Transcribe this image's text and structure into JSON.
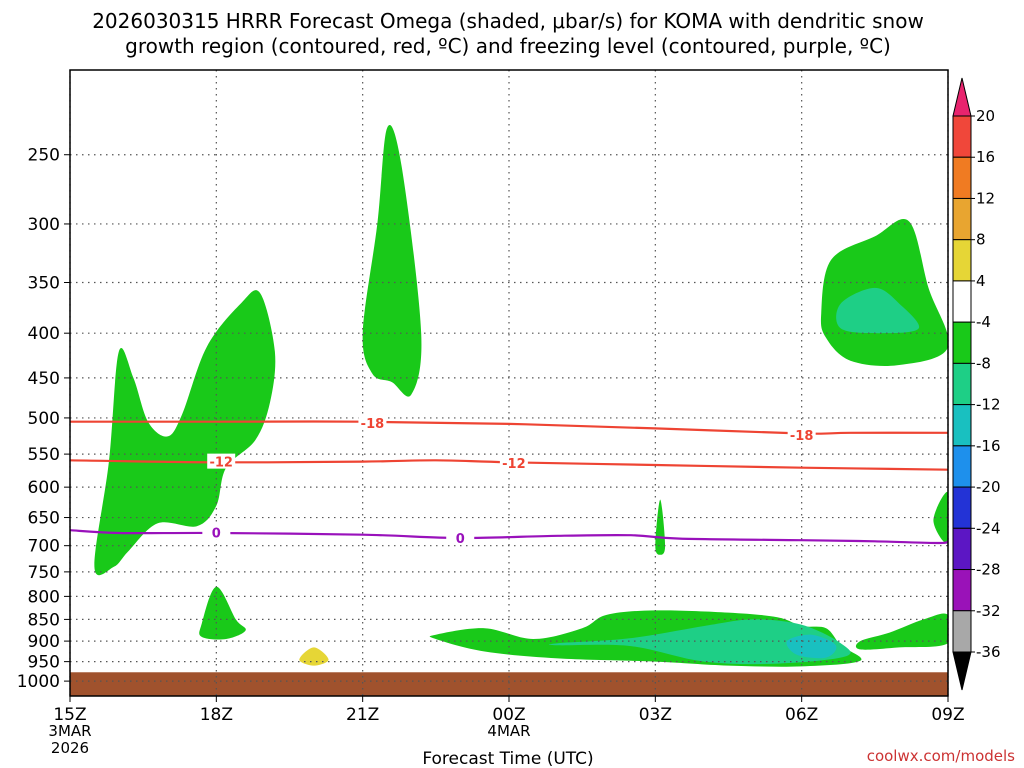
{
  "chart_data": {
    "type": "contour",
    "title_line1": "2026030315 HRRR Forecast Omega (shaded, μbar/s) for KOMA with dendritic snow",
    "title_line2": "growth region (contoured, red, ºC) and freezing level (contoured, purple, ºC)",
    "xlabel": "Forecast Time (UTC)",
    "credit": "coolwx.com/models",
    "x_ticks": [
      {
        "hour": 0,
        "label": "15Z",
        "sub1": "3MAR",
        "sub2": "2026"
      },
      {
        "hour": 3,
        "label": "18Z",
        "sub1": "",
        "sub2": ""
      },
      {
        "hour": 6,
        "label": "21Z",
        "sub1": "",
        "sub2": ""
      },
      {
        "hour": 9,
        "label": "00Z",
        "sub1": "4MAR",
        "sub2": ""
      },
      {
        "hour": 12,
        "label": "03Z",
        "sub1": "",
        "sub2": ""
      },
      {
        "hour": 15,
        "label": "06Z",
        "sub1": "",
        "sub2": ""
      },
      {
        "hour": 18,
        "label": "09Z",
        "sub1": "",
        "sub2": ""
      }
    ],
    "y_ticks": [
      250,
      300,
      350,
      400,
      450,
      500,
      550,
      600,
      650,
      700,
      750,
      800,
      850,
      900,
      950,
      1000
    ],
    "xlim": [
      0,
      18
    ],
    "ylim": [
      200,
      1040
    ],
    "y_scale": "log-pressure",
    "grid": true,
    "colorbar": {
      "labels": [
        "20",
        "16",
        "12",
        "8",
        "4",
        "-4",
        "-8",
        "-12",
        "-16",
        "-20",
        "-24",
        "-28",
        "-32",
        "-36"
      ],
      "colors": [
        "#e8246e",
        "#f0473a",
        "#f07b22",
        "#e8a530",
        "#e6d636",
        "#ffffff",
        "#19c919",
        "#1ecf86",
        "#19c0c0",
        "#1e90ec",
        "#2333d6",
        "#5c16c4",
        "#9a12b8",
        "#a8a8a8",
        "#000000"
      ]
    },
    "isotherms": [
      {
        "label": "-18",
        "color": "#ee4433",
        "points": [
          [
            0,
            505
          ],
          [
            3,
            505
          ],
          [
            6,
            505
          ],
          [
            9,
            508
          ],
          [
            12,
            514
          ],
          [
            15,
            521
          ],
          [
            16,
            520
          ],
          [
            18,
            520
          ]
        ],
        "label_at": [
          [
            6.2,
            507
          ],
          [
            15.0,
            523
          ]
        ]
      },
      {
        "label": "-12",
        "color": "#ee4433",
        "points": [
          [
            0,
            559
          ],
          [
            3,
            562
          ],
          [
            6,
            561
          ],
          [
            7.5,
            559
          ],
          [
            9,
            562
          ],
          [
            12,
            566
          ],
          [
            15,
            570
          ],
          [
            18,
            573
          ]
        ],
        "label_at": [
          [
            3.1,
            561
          ],
          [
            9.1,
            563
          ]
        ]
      },
      {
        "label": "0",
        "color": "#9911bb",
        "points": [
          [
            0,
            672
          ],
          [
            1,
            677
          ],
          [
            3,
            677
          ],
          [
            6,
            680
          ],
          [
            8,
            686
          ],
          [
            10,
            682
          ],
          [
            11.5,
            681
          ],
          [
            12.5,
            687
          ],
          [
            15,
            690
          ],
          [
            16.5,
            692
          ],
          [
            17.8,
            695
          ],
          [
            18,
            692
          ]
        ],
        "label_at": [
          [
            3.0,
            676
          ],
          [
            8.0,
            686
          ]
        ]
      }
    ],
    "ground": {
      "color": "#a0522d",
      "top_hpa": 977
    },
    "omega_regions": [
      {
        "value": "-4 to -8",
        "color": "#19c919",
        "points": [
          [
            0.5,
            740
          ],
          [
            0.8,
            560
          ],
          [
            1.0,
            420
          ],
          [
            1.3,
            450
          ],
          [
            1.6,
            505
          ],
          [
            2.0,
            525
          ],
          [
            2.3,
            495
          ],
          [
            2.8,
            415
          ],
          [
            3.5,
            370
          ],
          [
            3.9,
            360
          ],
          [
            4.2,
            420
          ],
          [
            4.1,
            480
          ],
          [
            3.8,
            530
          ],
          [
            3.2,
            570
          ],
          [
            3.0,
            630
          ],
          [
            2.6,
            665
          ],
          [
            1.8,
            660
          ],
          [
            1.2,
            710
          ],
          [
            0.9,
            740
          ]
        ]
      },
      {
        "value": "-4 to -8",
        "color": "#19c919",
        "points": [
          [
            6.0,
            400
          ],
          [
            6.3,
            300
          ],
          [
            6.5,
            233
          ],
          [
            6.8,
            258
          ],
          [
            7.2,
            400
          ],
          [
            7.0,
            470
          ],
          [
            6.6,
            455
          ],
          [
            6.2,
            445
          ]
        ]
      },
      {
        "value": "-4 to -8",
        "color": "#19c919",
        "points": [
          [
            15.4,
            380
          ],
          [
            15.6,
            330
          ],
          [
            16.5,
            310
          ],
          [
            17.2,
            298
          ],
          [
            17.6,
            355
          ],
          [
            18.0,
            415
          ],
          [
            17.0,
            435
          ],
          [
            16.0,
            430
          ],
          [
            15.5,
            405
          ]
        ]
      },
      {
        "value": "-8 to -12",
        "color": "#1ecf86",
        "points": [
          [
            15.8,
            370
          ],
          [
            16.5,
            355
          ],
          [
            17.0,
            370
          ],
          [
            17.4,
            395
          ],
          [
            16.6,
            400
          ],
          [
            15.8,
            395
          ]
        ]
      },
      {
        "value": "-4 to -8",
        "color": "#19c919",
        "points": [
          [
            17.7,
            655
          ],
          [
            18.0,
            608
          ],
          [
            18.0,
            695
          ]
        ]
      },
      {
        "value": "-4 to -8",
        "color": "#19c919",
        "points": [
          [
            12.0,
            700
          ],
          [
            12.1,
            620
          ],
          [
            12.2,
            700
          ],
          [
            12.1,
            717
          ]
        ]
      },
      {
        "value": "-4 to -8",
        "color": "#19c919",
        "points": [
          [
            2.7,
            860
          ],
          [
            3.0,
            780
          ],
          [
            3.4,
            850
          ],
          [
            3.6,
            875
          ],
          [
            3.2,
            895
          ],
          [
            2.7,
            890
          ]
        ]
      },
      {
        "value": "4 to 8",
        "color": "#e6d636",
        "points": [
          [
            4.7,
            945
          ],
          [
            5.0,
            915
          ],
          [
            5.3,
            945
          ],
          [
            5.0,
            960
          ]
        ]
      },
      {
        "value": "-4 to -8",
        "color": "#19c919",
        "points": [
          [
            7.5,
            885
          ],
          [
            8.5,
            870
          ],
          [
            9.5,
            895
          ],
          [
            10.5,
            870
          ],
          [
            11.0,
            840
          ],
          [
            12.0,
            830
          ],
          [
            13.5,
            835
          ],
          [
            14.5,
            845
          ],
          [
            15.0,
            865
          ],
          [
            15.5,
            870
          ],
          [
            15.8,
            910
          ],
          [
            16.2,
            948
          ],
          [
            15.0,
            962
          ],
          [
            13.5,
            960
          ],
          [
            12.0,
            950
          ],
          [
            10.0,
            942
          ],
          [
            8.5,
            925
          ],
          [
            7.5,
            895
          ]
        ]
      },
      {
        "value": "-8 to -12",
        "color": "#1ecf86",
        "points": [
          [
            10.0,
            905
          ],
          [
            11.5,
            893
          ],
          [
            13.0,
            865
          ],
          [
            14.0,
            850
          ],
          [
            15.0,
            862
          ],
          [
            15.8,
            905
          ],
          [
            15.9,
            937
          ],
          [
            14.5,
            955
          ],
          [
            13.0,
            950
          ],
          [
            11.5,
            912
          ],
          [
            10.0,
            910
          ]
        ]
      },
      {
        "value": "-12 to -16",
        "color": "#19c0c0",
        "points": [
          [
            14.7,
            900
          ],
          [
            15.2,
            885
          ],
          [
            15.7,
            910
          ],
          [
            15.5,
            940
          ],
          [
            14.9,
            933
          ]
        ]
      },
      {
        "value": "-4 to -8",
        "color": "#19c919",
        "points": [
          [
            16.2,
            900
          ],
          [
            16.8,
            880
          ],
          [
            17.5,
            850
          ],
          [
            18.0,
            840
          ],
          [
            18.0,
            905
          ],
          [
            17.0,
            915
          ],
          [
            16.2,
            920
          ]
        ]
      }
    ]
  }
}
